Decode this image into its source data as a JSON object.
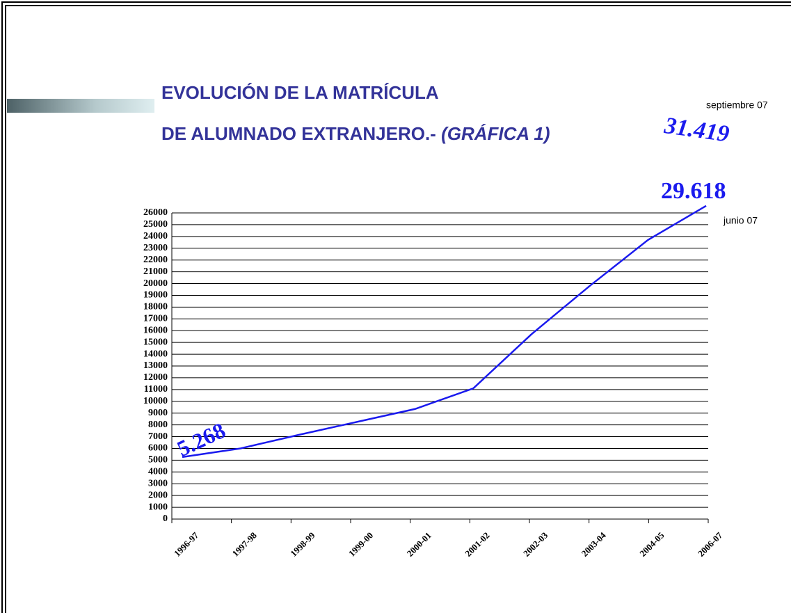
{
  "chart_data": {
    "type": "line",
    "title": [
      "EVOLUCIÓN DE LA MATRÍCULA",
      "DE ALUMNADO EXTRANJERO.-"
    ],
    "subtitle": "(GRÁFICA 1)",
    "categories": [
      "1996-97",
      "1997-98",
      "1998-99",
      "1999-00",
      "2000-01",
      "2001-02",
      "2002-03",
      "2003-04",
      "2004-05",
      "2006-07"
    ],
    "series": [
      {
        "name": "Alumnado extranjero",
        "color": "#1a1aee",
        "values": [
          5268,
          6000,
          7150,
          8250,
          9350,
          11100,
          15700,
          19800,
          23700,
          26600
        ]
      }
    ],
    "ylim": [
      0,
      26000
    ],
    "yticks": [
      0,
      1000,
      2000,
      3000,
      4000,
      5000,
      6000,
      7000,
      8000,
      9000,
      10000,
      11000,
      12000,
      13000,
      14000,
      15000,
      16000,
      17000,
      18000,
      19000,
      20000,
      21000,
      22000,
      23000,
      24000,
      25000,
      26000
    ],
    "grid": true,
    "annotations": [
      "5.268",
      "29.618",
      "junio 07",
      "31.419",
      "septiembre 07"
    ]
  }
}
